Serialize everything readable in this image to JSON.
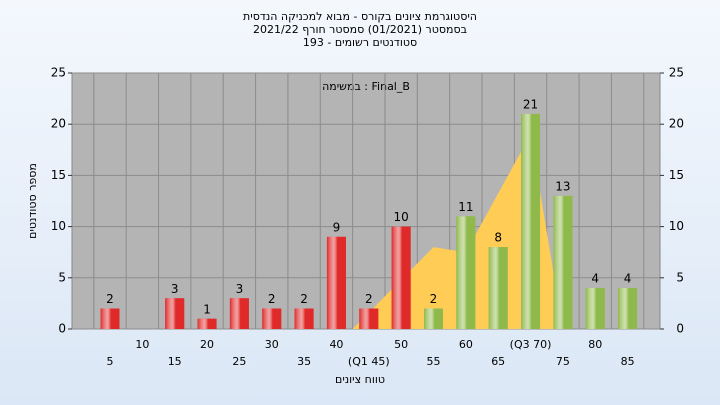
{
  "chart_data": {
    "type": "bar",
    "title": [
      "היסטוגרמת ציונים בקורס - מבוא למכניקה הנדסית",
      "בסמסטר  (01/2021)  סמסטר חורף 2021/22",
      "סטודנטים רשומים - 193"
    ],
    "annotation": "במשימה : Final_B",
    "y_label": "מספר סטודנטים",
    "x_label": "טווח ציונים",
    "categories": [
      "5",
      "10",
      "15",
      "20",
      "25",
      "30",
      "35",
      "40",
      "(Q1 45)",
      "50",
      "55",
      "60",
      "65",
      "(Q3 70)",
      "75",
      "80",
      "85"
    ],
    "values": [
      2,
      null,
      3,
      1,
      3,
      2,
      2,
      9,
      2,
      10,
      2,
      11,
      8,
      21,
      13,
      4,
      4
    ],
    "colors": [
      "#e02a2a",
      "#e02a2a",
      "#e02a2a",
      "#e02a2a",
      "#e02a2a",
      "#e02a2a",
      "#e02a2a",
      "#e02a2a",
      "#e02a2a",
      "#e02a2a",
      "#8fb94a",
      "#8fb94a",
      "#8fb94a",
      "#8fb94a",
      "#8fb94a",
      "#8fb94a",
      "#8fb94a"
    ],
    "area": {
      "x": [
        42.5,
        55,
        60,
        70,
        75
      ],
      "values": [
        0,
        8,
        7.5,
        19,
        0
      ],
      "color": "#ffcc55"
    },
    "ylim": [
      0,
      25
    ],
    "yticks": [
      0,
      5,
      10,
      15,
      20,
      25
    ],
    "y2lim": [
      0,
      25
    ],
    "y2ticks": [
      0,
      5,
      10,
      15,
      20,
      25
    ],
    "grid": true
  }
}
